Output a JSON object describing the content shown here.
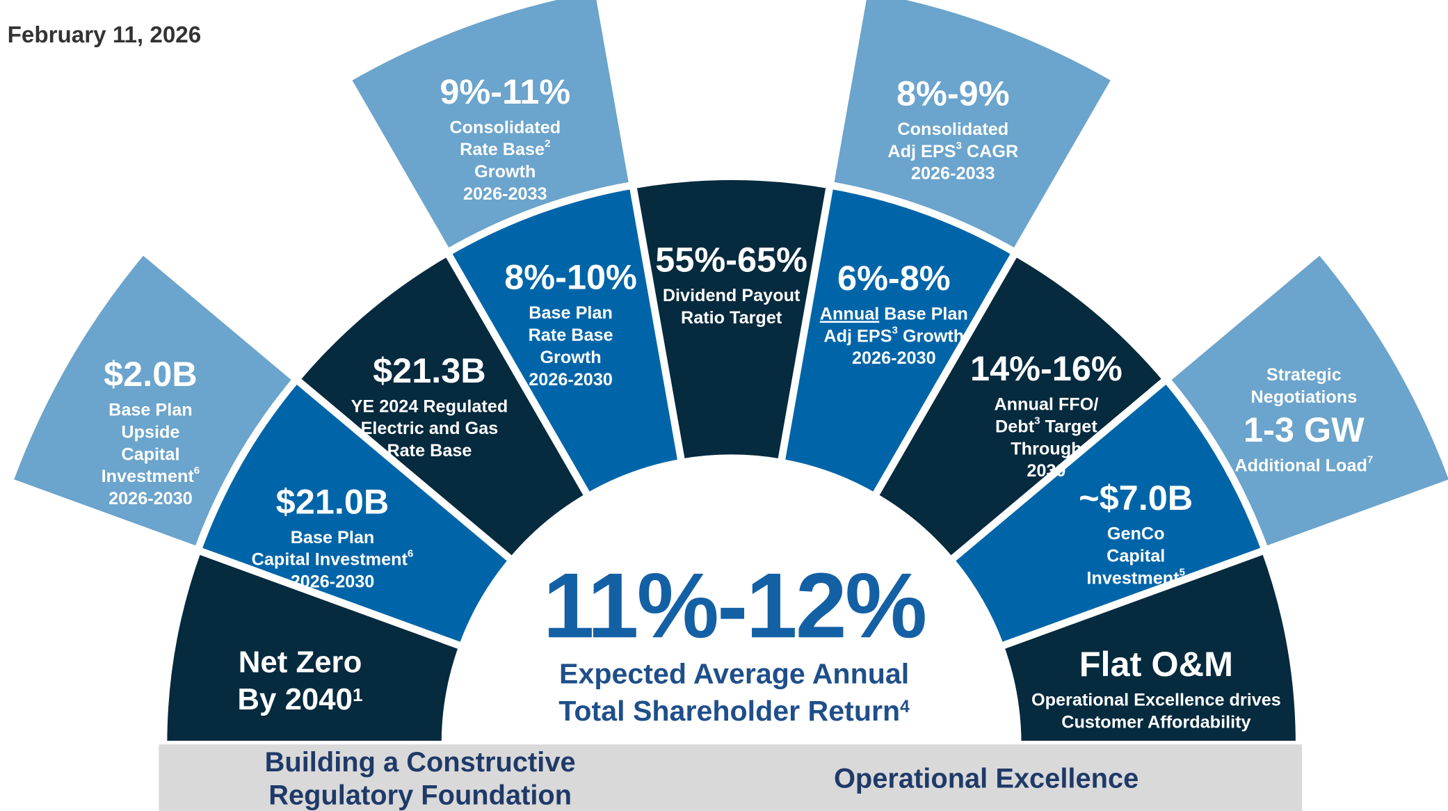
{
  "header": {
    "date": "February 11, 2026"
  },
  "inner_ring": [
    {
      "tone": "dark",
      "lines": [
        {
          "style": "headline",
          "runs": [
            {
              "text": "Net Zero"
            }
          ]
        },
        {
          "style": "headline",
          "runs": [
            {
              "text": "By 2040"
            },
            {
              "sup": "1"
            }
          ]
        }
      ]
    },
    {
      "tone": "blue",
      "lines": [
        {
          "style": "headline",
          "runs": [
            {
              "text": "$21.0B"
            }
          ]
        },
        {
          "style": "detail",
          "runs": [
            {
              "text": "Base Plan"
            }
          ]
        },
        {
          "style": "detail",
          "runs": [
            {
              "text": "Capital Investment"
            },
            {
              "sup": "6"
            }
          ]
        },
        {
          "style": "detail",
          "runs": [
            {
              "text": "2026-2030"
            }
          ]
        }
      ]
    },
    {
      "tone": "dark",
      "lines": [
        {
          "style": "headline",
          "runs": [
            {
              "text": "$21.3B"
            }
          ]
        },
        {
          "style": "detail",
          "runs": [
            {
              "text": "YE 2024 Regulated"
            }
          ]
        },
        {
          "style": "detail",
          "runs": [
            {
              "text": "Electric and Gas"
            }
          ]
        },
        {
          "style": "detail",
          "runs": [
            {
              "text": "Rate Base"
            }
          ]
        }
      ]
    },
    {
      "tone": "blue",
      "lines": [
        {
          "style": "headline",
          "runs": [
            {
              "text": "8%-10%"
            }
          ]
        },
        {
          "style": "detail",
          "runs": [
            {
              "text": "Base Plan"
            }
          ]
        },
        {
          "style": "detail",
          "runs": [
            {
              "text": "Rate Base"
            }
          ]
        },
        {
          "style": "detail",
          "runs": [
            {
              "text": "Growth"
            }
          ]
        },
        {
          "style": "detail",
          "runs": [
            {
              "text": "2026-2030"
            }
          ]
        }
      ]
    },
    {
      "tone": "dark",
      "lines": [
        {
          "style": "headline",
          "runs": [
            {
              "text": "55%-65%"
            }
          ]
        },
        {
          "style": "detail",
          "runs": [
            {
              "text": "Dividend Payout"
            }
          ]
        },
        {
          "style": "detail",
          "runs": [
            {
              "text": "Ratio Target"
            }
          ]
        }
      ]
    },
    {
      "tone": "blue",
      "lines": [
        {
          "style": "headline",
          "runs": [
            {
              "text": "6%-8%"
            }
          ]
        },
        {
          "style": "detail",
          "runs": [
            {
              "text": "Annual",
              "underline": true
            },
            {
              "text": " Base Plan"
            }
          ]
        },
        {
          "style": "detail",
          "runs": [
            {
              "text": "Adj EPS"
            },
            {
              "sup": "3"
            },
            {
              "text": " Growth"
            }
          ]
        },
        {
          "style": "detail",
          "runs": [
            {
              "text": "2026-2030"
            }
          ]
        }
      ]
    },
    {
      "tone": "dark",
      "lines": [
        {
          "style": "headline",
          "runs": [
            {
              "text": "14%-16%"
            }
          ]
        },
        {
          "style": "detail",
          "runs": [
            {
              "text": "Annual FFO/"
            }
          ]
        },
        {
          "style": "detail",
          "runs": [
            {
              "text": "Debt"
            },
            {
              "sup": "3"
            },
            {
              "text": " Target"
            }
          ]
        },
        {
          "style": "detail",
          "runs": [
            {
              "text": "Through"
            }
          ]
        },
        {
          "style": "detail",
          "runs": [
            {
              "text": "2030"
            }
          ]
        }
      ]
    },
    {
      "tone": "blue",
      "lines": [
        {
          "style": "headline",
          "runs": [
            {
              "text": "~$7.0B"
            }
          ]
        },
        {
          "style": "detail",
          "runs": [
            {
              "text": "GenCo"
            }
          ]
        },
        {
          "style": "detail",
          "runs": [
            {
              "text": "Capital"
            }
          ]
        },
        {
          "style": "detail",
          "runs": [
            {
              "text": "Investment"
            },
            {
              "sup": "5"
            }
          ]
        }
      ]
    },
    {
      "tone": "dark",
      "lines": [
        {
          "style": "headline",
          "runs": [
            {
              "text": "Flat O&M"
            }
          ]
        },
        {
          "style": "detail",
          "runs": [
            {
              "text": "Operational Excellence drives"
            }
          ]
        },
        {
          "style": "detail",
          "runs": [
            {
              "text": "Customer Affordability"
            }
          ]
        }
      ]
    }
  ],
  "outer_ring": [
    {
      "tone": "light",
      "lines": [
        {
          "style": "headline",
          "runs": [
            {
              "text": "$2.0B"
            }
          ]
        },
        {
          "style": "detail",
          "runs": [
            {
              "text": "Base Plan"
            }
          ]
        },
        {
          "style": "detail",
          "runs": [
            {
              "text": "Upside"
            }
          ]
        },
        {
          "style": "detail",
          "runs": [
            {
              "text": "Capital"
            }
          ]
        },
        {
          "style": "detail",
          "runs": [
            {
              "text": "Investment"
            },
            {
              "sup": "6"
            }
          ]
        },
        {
          "style": "detail",
          "runs": [
            {
              "text": "2026-2030"
            }
          ]
        }
      ]
    },
    {
      "tone": "light",
      "lines": [
        {
          "style": "headline",
          "runs": [
            {
              "text": "9%-11%"
            }
          ]
        },
        {
          "style": "detail",
          "runs": [
            {
              "text": "Consolidated"
            }
          ]
        },
        {
          "style": "detail",
          "runs": [
            {
              "text": "Rate Base"
            },
            {
              "sup": "2"
            }
          ]
        },
        {
          "style": "detail",
          "runs": [
            {
              "text": "Growth"
            }
          ]
        },
        {
          "style": "detail",
          "runs": [
            {
              "text": "2026-2033"
            }
          ]
        }
      ]
    },
    {
      "tone": "light",
      "lines": [
        {
          "style": "headline",
          "runs": [
            {
              "text": "8%-9%"
            }
          ]
        },
        {
          "style": "detail",
          "runs": [
            {
              "text": "Consolidated"
            }
          ]
        },
        {
          "style": "detail",
          "runs": [
            {
              "text": "Adj EPS"
            },
            {
              "sup": "3"
            },
            {
              "text": " CAGR"
            }
          ]
        },
        {
          "style": "detail",
          "runs": [
            {
              "text": "2026-2033"
            }
          ]
        }
      ]
    },
    {
      "tone": "light",
      "lines": [
        {
          "style": "detail",
          "runs": [
            {
              "text": "Strategic"
            }
          ]
        },
        {
          "style": "detail",
          "runs": [
            {
              "text": "Negotiations"
            }
          ]
        },
        {
          "style": "headline",
          "runs": [
            {
              "text": "1-3 GW"
            }
          ]
        },
        {
          "style": "detail",
          "runs": [
            {
              "text": "Additional Load"
            },
            {
              "sup": "7"
            }
          ]
        }
      ]
    }
  ],
  "center": {
    "headline": "11%-12%",
    "lines": [
      {
        "runs": [
          {
            "text": "Expected Average Annual"
          }
        ]
      },
      {
        "runs": [
          {
            "text": "Total Shareholder Return"
          },
          {
            "sup": "4"
          }
        ]
      }
    ]
  },
  "footer": {
    "left": [
      "Building a Constructive",
      "Regulatory Foundation"
    ],
    "right": "Operational Excellence"
  }
}
